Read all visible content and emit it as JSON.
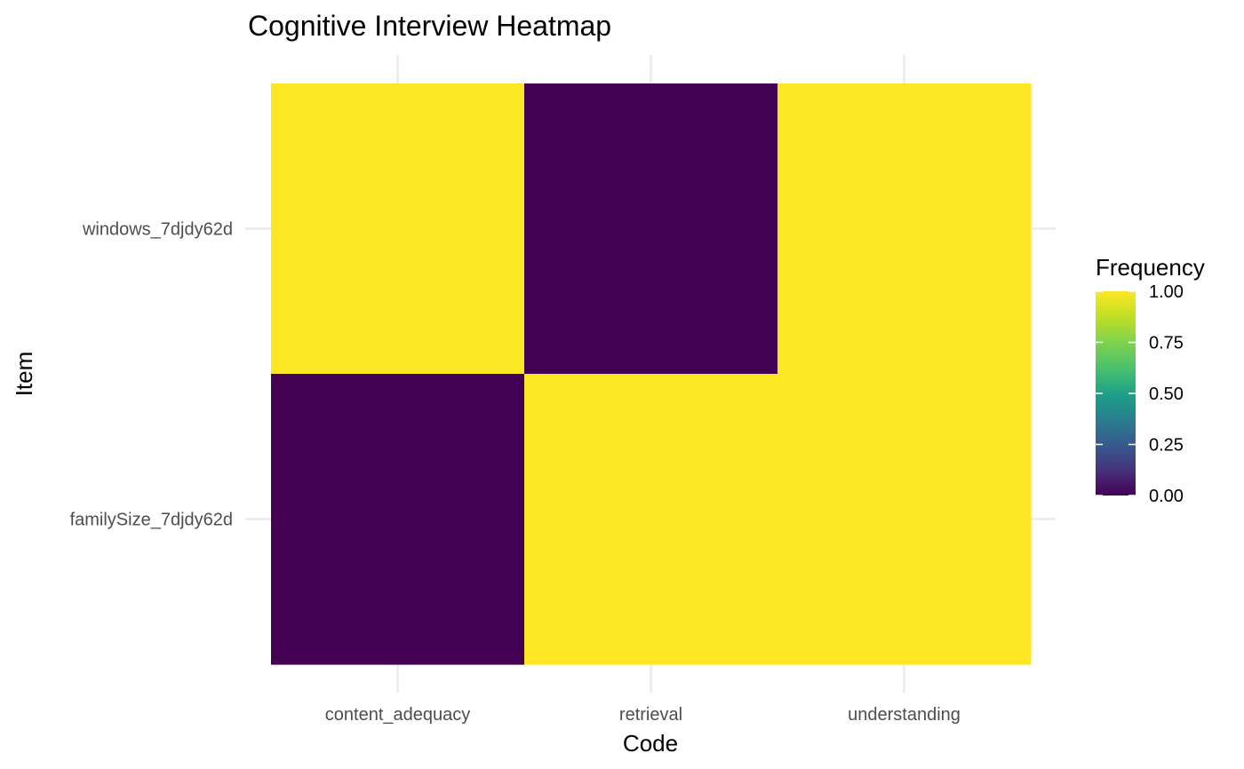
{
  "chart_data": {
    "type": "heatmap",
    "title": "Cognitive Interview Heatmap",
    "xlabel": "Code",
    "ylabel": "Item",
    "x_categories": [
      "content_adequacy",
      "retrieval",
      "understanding"
    ],
    "y_categories": [
      "windows_7djdy62d",
      "familySize_7djdy62d"
    ],
    "values": [
      [
        1,
        0,
        1
      ],
      [
        0,
        1,
        1
      ]
    ],
    "value_range": [
      0,
      1
    ],
    "colorscale": "viridis",
    "colors": {
      "low": "#440154",
      "high": "#FDE725",
      "grid": "#EBEBEB"
    },
    "legend": {
      "title": "Frequency",
      "position": "right",
      "ticks": [
        1.0,
        0.75,
        0.5,
        0.25,
        0.0
      ],
      "tick_labels": [
        "1.00",
        "0.75",
        "0.50",
        "0.25",
        "0.00"
      ]
    },
    "grid": true
  }
}
